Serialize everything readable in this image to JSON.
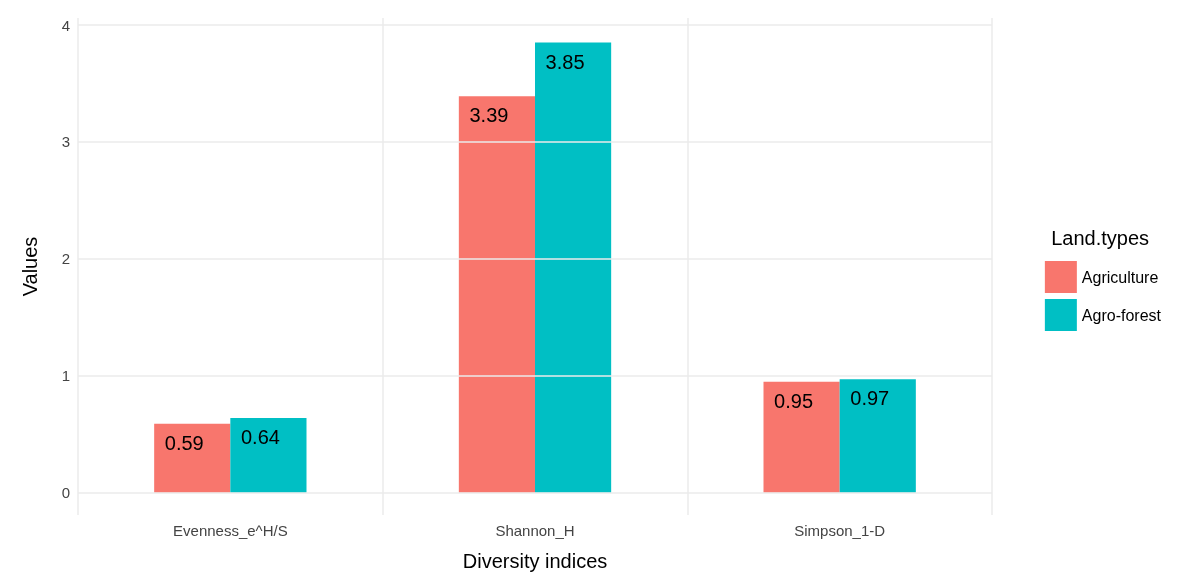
{
  "chart_data": {
    "type": "bar",
    "xlabel": "Diversity indices",
    "ylabel": "Values",
    "legend_title": "Land.types",
    "categories": [
      "Evenness_e^H/S",
      "Shannon_H",
      "Simpson_1-D"
    ],
    "series": [
      {
        "name": "Agriculture",
        "color": "#f8766d",
        "values": [
          0.59,
          3.39,
          0.95
        ]
      },
      {
        "name": "Agro-forest",
        "color": "#00bfc4",
        "values": [
          0.64,
          3.85,
          0.97
        ]
      }
    ],
    "ylim": [
      -0.19,
      4.06
    ],
    "yticks": [
      0,
      1,
      2,
      3,
      4
    ],
    "grid": true,
    "legend": "right",
    "data_labels": true
  }
}
